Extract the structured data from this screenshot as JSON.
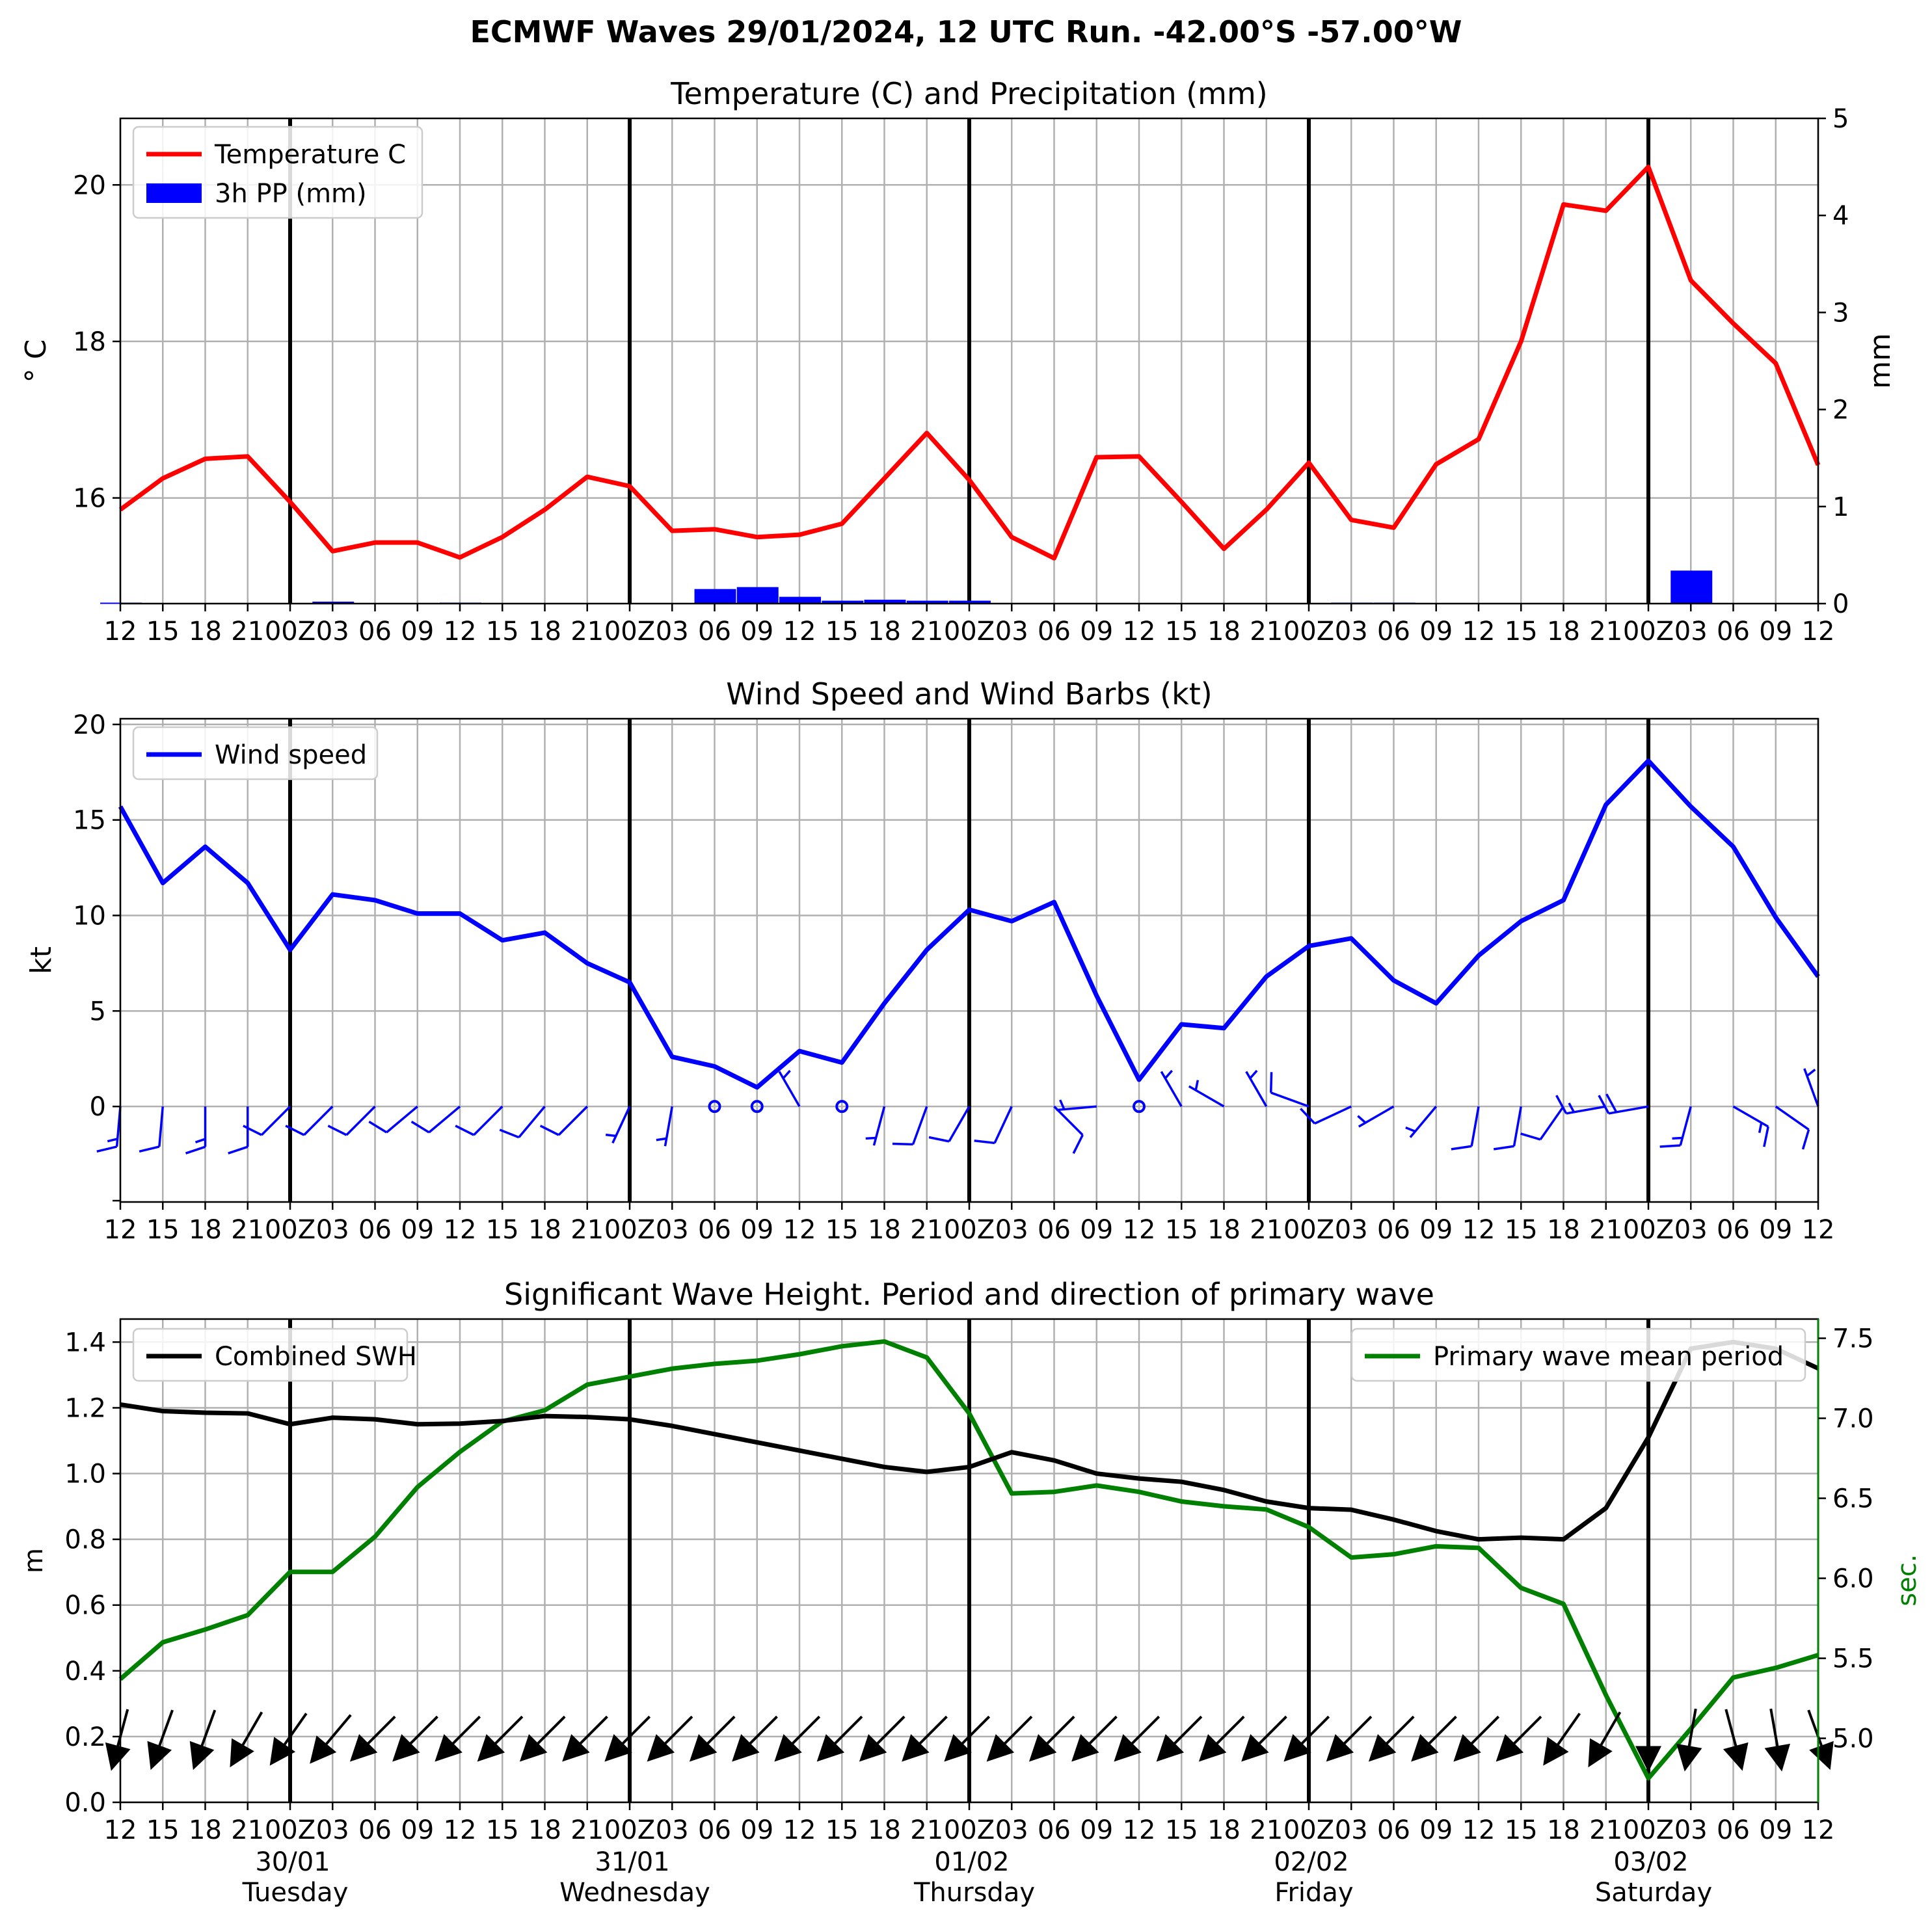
{
  "figure": {
    "suptitle": "ECMWF Waves 29/01/2024, 12 UTC Run. -42.00°S -57.00°W"
  },
  "colors": {
    "temperature": "#ff0000",
    "precip": "#0000ff",
    "wind": "#0000ff",
    "swh": "#000000",
    "period": "#008000",
    "grid": "#b0b0b0",
    "day_line": "#000000"
  },
  "x_axis": {
    "hours_ticks": [
      "12",
      "15",
      "18",
      "21",
      "00Z",
      "03",
      "06",
      "09",
      "12",
      "15",
      "18",
      "21",
      "00Z",
      "03",
      "06",
      "09",
      "12",
      "15",
      "18",
      "21",
      "00Z",
      "03",
      "06",
      "09",
      "12",
      "15",
      "18",
      "21",
      "00Z",
      "03",
      "06",
      "09",
      "12",
      "15",
      "18",
      "21",
      "00Z",
      "03",
      "06",
      "09",
      "12"
    ],
    "day_labels": [
      {
        "date": "30/01",
        "weekday": "Tuesday",
        "at": 4
      },
      {
        "date": "31/01",
        "weekday": "Wednesday",
        "at": 12
      },
      {
        "date": "01/02",
        "weekday": "Thursday",
        "at": 20
      },
      {
        "date": "02/02",
        "weekday": "Friday",
        "at": 28
      },
      {
        "date": "03/02",
        "weekday": "Saturday",
        "at": 36
      }
    ],
    "day_boundaries": [
      4,
      12,
      20,
      28,
      36
    ]
  },
  "chart_data": [
    {
      "type": "line",
      "title": "Temperature (C) and Precipitation (mm)",
      "ylabel": "$^\\circ$C",
      "ylabel_display": "° C",
      "ylabel_right": "mm",
      "ylim": [
        14.65,
        20.85
      ],
      "ylim_right": [
        0,
        5
      ],
      "yticks": [
        16,
        18,
        20
      ],
      "yticks_right": [
        0,
        1,
        2,
        3,
        4,
        5
      ],
      "grid": true,
      "legend": "top-left",
      "series": [
        {
          "name": "Temperature C",
          "kind": "line",
          "axis": "left",
          "values": [
            15.85,
            16.25,
            16.5,
            16.53,
            15.95,
            15.32,
            15.43,
            15.43,
            15.24,
            15.5,
            15.85,
            16.27,
            16.15,
            15.58,
            15.6,
            15.5,
            15.53,
            15.67,
            16.25,
            16.83,
            16.23,
            15.5,
            15.23,
            16.52,
            16.53,
            15.95,
            15.35,
            15.85,
            16.45,
            15.72,
            15.62,
            16.43,
            16.75,
            18.0,
            19.75,
            19.67,
            20.23,
            18.78,
            18.23,
            17.72,
            16.42
          ]
        },
        {
          "name": "3h PP (mm)",
          "kind": "bar",
          "axis": "right",
          "values": [
            0.01,
            0,
            0,
            0,
            0,
            0.02,
            0,
            0,
            0.01,
            0,
            0,
            0,
            0,
            0,
            0.15,
            0.17,
            0.07,
            0.03,
            0.04,
            0.03,
            0.03,
            0,
            0,
            0,
            0,
            0,
            0,
            0,
            0,
            0.01,
            0.01,
            0,
            0,
            0,
            0,
            0,
            0,
            0.34,
            0,
            0,
            0
          ]
        }
      ]
    },
    {
      "type": "line",
      "title": "Wind Speed and Wind Barbs (kt)",
      "ylabel": "kt",
      "ylim": [
        -5,
        20.3
      ],
      "yticks": [
        0,
        5,
        10,
        15,
        20
      ],
      "grid": true,
      "legend": "top-left",
      "series": [
        {
          "name": "Wind speed",
          "kind": "line",
          "values": [
            15.7,
            11.7,
            13.6,
            11.7,
            8.2,
            11.1,
            10.8,
            10.1,
            10.1,
            8.7,
            9.1,
            7.5,
            6.5,
            2.6,
            2.1,
            1.0,
            2.9,
            2.3,
            5.4,
            8.2,
            10.3,
            9.7,
            10.7,
            5.8,
            1.4,
            4.3,
            4.1,
            6.8,
            8.4,
            8.8,
            6.6,
            5.4,
            7.9,
            9.7,
            10.8,
            15.8,
            18.1,
            15.7,
            13.6,
            9.9,
            6.8
          ]
        }
      ],
      "barbs": {
        "direction_from_deg": [
          185,
          185,
          180,
          180,
          225,
          225,
          225,
          230,
          230,
          225,
          220,
          225,
          205,
          190,
          0,
          0,
          330,
          0,
          195,
          200,
          210,
          205,
          135,
          265,
          0,
          330,
          300,
          330,
          290,
          245,
          240,
          220,
          190,
          190,
          215,
          260,
          260,
          195,
          120,
          125,
          340
        ]
      }
    },
    {
      "type": "line",
      "title": "Significant Wave Height. Period and direction of primary wave",
      "ylabel": "m",
      "ylabel_right": "sec.",
      "ylim": [
        0,
        1.47
      ],
      "ylim_right": [
        4.6,
        7.62
      ],
      "yticks": [
        0.0,
        0.2,
        0.4,
        0.6,
        0.8,
        1.0,
        1.2,
        1.4
      ],
      "yticks_right": [
        5.0,
        5.5,
        6.0,
        6.5,
        7.0,
        7.5
      ],
      "grid": true,
      "legend_left": "top-left",
      "legend_right": "top-right",
      "series": [
        {
          "name": "Combined SWH",
          "kind": "line",
          "axis": "left",
          "values": [
            1.21,
            1.19,
            1.185,
            1.183,
            1.15,
            1.17,
            1.165,
            1.15,
            1.152,
            1.16,
            1.175,
            1.172,
            1.165,
            1.145,
            1.12,
            1.095,
            1.07,
            1.045,
            1.02,
            1.005,
            1.02,
            1.065,
            1.04,
            1.0,
            0.985,
            0.975,
            0.95,
            0.915,
            0.895,
            0.89,
            0.86,
            0.825,
            0.8,
            0.805,
            0.8,
            0.895,
            1.11,
            1.38,
            1.4,
            1.38,
            1.32
          ]
        },
        {
          "name": "Primary wave mean period",
          "kind": "line",
          "axis": "right",
          "values": [
            5.37,
            5.6,
            5.68,
            5.77,
            6.04,
            6.04,
            6.26,
            6.57,
            6.79,
            6.98,
            7.05,
            7.21,
            7.26,
            7.31,
            7.34,
            7.36,
            7.4,
            7.45,
            7.48,
            7.38,
            7.03,
            6.53,
            6.54,
            6.58,
            6.54,
            6.48,
            6.45,
            6.43,
            6.32,
            6.13,
            6.15,
            6.2,
            6.19,
            5.94,
            5.84,
            5.27,
            4.75,
            5.06,
            5.38,
            5.44,
            5.52
          ]
        }
      ],
      "wave_direction_to_deg": [
        195,
        200,
        200,
        210,
        215,
        220,
        225,
        225,
        225,
        225,
        225,
        225,
        225,
        225,
        225,
        225,
        225,
        225,
        225,
        225,
        225,
        225,
        225,
        225,
        225,
        225,
        225,
        225,
        225,
        225,
        225,
        225,
        225,
        225,
        215,
        210,
        180,
        190,
        165,
        170,
        160
      ]
    }
  ]
}
